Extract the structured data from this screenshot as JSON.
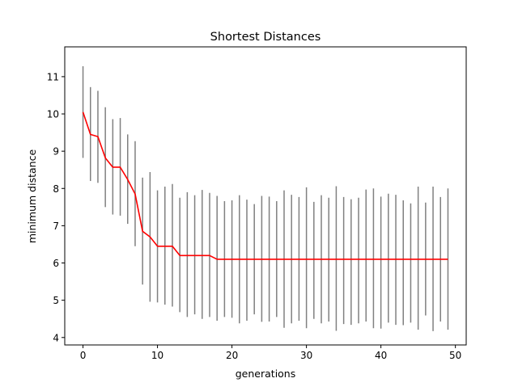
{
  "chart_data": {
    "type": "line",
    "title": "Shortest Distances",
    "xlabel": "generations",
    "ylabel": "minimum distance",
    "xlim": [
      -2.45,
      51.45
    ],
    "ylim": [
      3.8,
      11.8
    ],
    "xticks": [
      0,
      10,
      20,
      30,
      40,
      50
    ],
    "yticks": [
      4,
      5,
      6,
      7,
      8,
      9,
      10,
      11
    ],
    "grid": false,
    "legend": "none",
    "series": [
      {
        "color": "#ff0000",
        "x": [
          0,
          1,
          2,
          3,
          4,
          5,
          6,
          7,
          8,
          9,
          10,
          11,
          12,
          13,
          14,
          15,
          16,
          17,
          18,
          19,
          20,
          21,
          22,
          23,
          24,
          25,
          26,
          27,
          28,
          29,
          30,
          31,
          32,
          33,
          34,
          35,
          36,
          37,
          38,
          39,
          40,
          41,
          42,
          43,
          44,
          45,
          46,
          47,
          48,
          49
        ],
        "y": [
          10.05,
          9.45,
          9.39,
          8.82,
          8.57,
          8.57,
          8.24,
          7.85,
          6.85,
          6.7,
          6.45,
          6.45,
          6.45,
          6.2,
          6.2,
          6.2,
          6.2,
          6.2,
          6.1,
          6.1,
          6.1,
          6.1,
          6.1,
          6.1,
          6.1,
          6.1,
          6.1,
          6.1,
          6.1,
          6.1,
          6.1,
          6.1,
          6.1,
          6.1,
          6.1,
          6.1,
          6.1,
          6.1,
          6.1,
          6.1,
          6.1,
          6.1,
          6.1,
          6.1,
          6.1,
          6.1,
          6.1,
          6.1,
          6.1,
          6.1
        ]
      }
    ],
    "error_bars": {
      "color": "#808080",
      "x": [
        0,
        1,
        2,
        3,
        4,
        5,
        6,
        7,
        8,
        9,
        10,
        11,
        12,
        13,
        14,
        15,
        16,
        17,
        18,
        19,
        20,
        21,
        22,
        23,
        24,
        25,
        26,
        27,
        28,
        29,
        30,
        31,
        32,
        33,
        34,
        35,
        36,
        37,
        38,
        39,
        40,
        41,
        42,
        43,
        44,
        45,
        46,
        47,
        48,
        49
      ],
      "low": [
        8.82,
        8.2,
        8.15,
        7.5,
        7.3,
        7.27,
        7.05,
        6.45,
        5.42,
        4.96,
        4.94,
        4.88,
        4.83,
        4.68,
        4.55,
        4.62,
        4.5,
        4.55,
        4.45,
        4.55,
        4.53,
        4.38,
        4.45,
        4.62,
        4.42,
        4.43,
        4.55,
        4.26,
        4.38,
        4.45,
        4.25,
        4.5,
        4.38,
        4.43,
        4.18,
        4.36,
        4.34,
        4.38,
        4.43,
        4.25,
        4.24,
        4.4,
        4.34,
        4.33,
        4.4,
        4.21,
        4.59,
        4.17,
        4.43,
        4.21
      ],
      "high": [
        11.28,
        10.72,
        10.62,
        10.18,
        9.86,
        9.89,
        9.45,
        9.27,
        8.29,
        8.44,
        7.95,
        8.05,
        8.12,
        7.75,
        7.9,
        7.82,
        7.96,
        7.88,
        7.8,
        7.66,
        7.68,
        7.82,
        7.7,
        7.58,
        7.8,
        7.78,
        7.66,
        7.95,
        7.83,
        7.77,
        8.03,
        7.64,
        7.82,
        7.75,
        8.06,
        7.77,
        7.71,
        7.75,
        7.97,
        8.0,
        7.78,
        7.86,
        7.83,
        7.68,
        7.6,
        8.05,
        7.62,
        8.05,
        7.77,
        8.0
      ]
    }
  }
}
